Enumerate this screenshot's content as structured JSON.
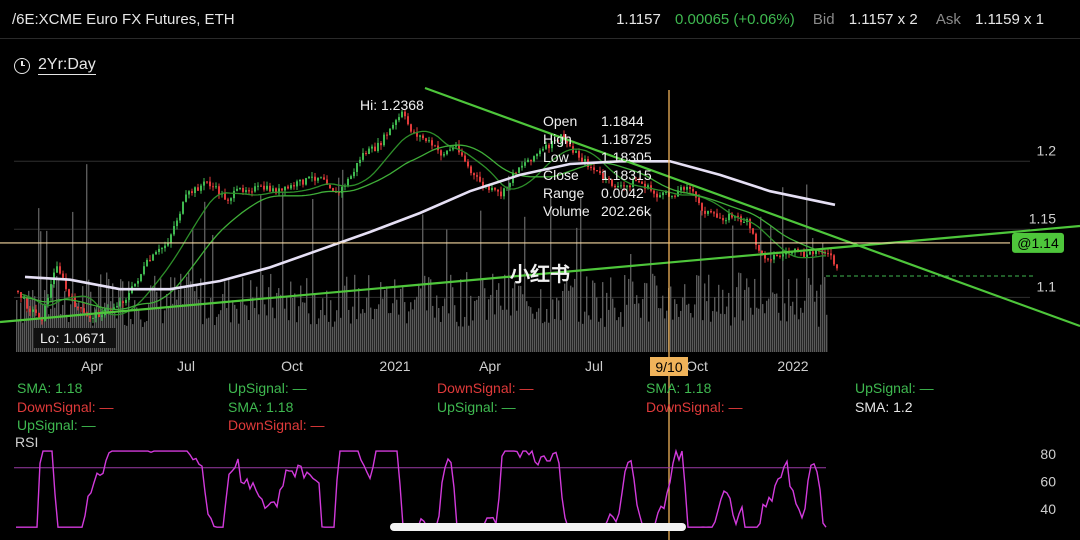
{
  "header": {
    "symbol": "/6E:XCME Euro FX Futures, ETH",
    "last": "1.1157",
    "change": "0.00065 (+0.06%)",
    "bid_label": "Bid",
    "bid": "1.1157 x 2",
    "ask_label": "Ask",
    "ask": "1.1159 x 1"
  },
  "range_selector": {
    "label": "2Yr:Day",
    "icon": "clock-icon"
  },
  "crosshair": {
    "date_label": "9/10"
  },
  "tooltip": {
    "rows": [
      {
        "label": "Open",
        "value": "1.1844"
      },
      {
        "label": "High",
        "value": "1.18725"
      },
      {
        "label": "Low",
        "value": "1.18305"
      },
      {
        "label": "Close",
        "value": "1.18315"
      },
      {
        "label": "Range",
        "value": "0.0042"
      },
      {
        "label": "Volume",
        "value": "202.26k"
      }
    ]
  },
  "watermark": "小红书",
  "colors": {
    "up": "#3fb950",
    "down": "#e03a3a",
    "sma200": "#e6e0f5",
    "trendline": "#4ec63b",
    "crosshair": "#f0b35a",
    "rsi": "#d23adb",
    "volume": "#5a5a5a"
  },
  "legends": [
    {
      "text": "SMA: 1.18",
      "color": "green"
    },
    {
      "text": "DownSignal: —",
      "color": "red"
    },
    {
      "text": "UpSignal: —",
      "color": "green"
    },
    {
      "text": "UpSignal: —",
      "color": "green"
    },
    {
      "text": "SMA: 1.18",
      "color": "green"
    },
    {
      "text": "DownSignal: —",
      "color": "red"
    },
    {
      "text": "DownSignal: —",
      "color": "red"
    },
    {
      "text": "UpSignal: —",
      "color": "green"
    },
    {
      "text": "SMA: 1.18",
      "color": "green"
    },
    {
      "text": "DownSignal: —",
      "color": "red"
    },
    {
      "text": "UpSignal: —",
      "color": "green"
    },
    {
      "text": "SMA: 1.2",
      "color": "white"
    }
  ],
  "chart_data": [
    {
      "type": "candlestick",
      "title": "/6E:XCME Euro FX Futures, ETH",
      "x_ticks": [
        "Apr",
        "Jul",
        "Oct",
        "2021",
        "Apr",
        "Jul",
        "Oct",
        "2022"
      ],
      "y_ticks": [
        1.2,
        1.15,
        1.1
      ],
      "ylim": [
        1.065,
        1.245
      ],
      "annotations": {
        "hi": "Hi: 1.2368",
        "lo": "Lo: 1.0671",
        "price_tag": "@1.14"
      },
      "price_line": 1.14,
      "dashed_line": 1.1157,
      "close_series": [
        {
          "x": 0,
          "y": 1.105
        },
        {
          "x": 12,
          "y": 1.092
        },
        {
          "x": 25,
          "y": 1.085
        },
        {
          "x": 40,
          "y": 1.125
        },
        {
          "x": 52,
          "y": 1.1
        },
        {
          "x": 70,
          "y": 1.085
        },
        {
          "x": 90,
          "y": 1.09
        },
        {
          "x": 110,
          "y": 1.1
        },
        {
          "x": 130,
          "y": 1.125
        },
        {
          "x": 150,
          "y": 1.14
        },
        {
          "x": 170,
          "y": 1.175
        },
        {
          "x": 190,
          "y": 1.185
        },
        {
          "x": 210,
          "y": 1.172
        },
        {
          "x": 225,
          "y": 1.18
        },
        {
          "x": 245,
          "y": 1.18
        },
        {
          "x": 265,
          "y": 1.178
        },
        {
          "x": 285,
          "y": 1.185
        },
        {
          "x": 305,
          "y": 1.19
        },
        {
          "x": 320,
          "y": 1.175
        },
        {
          "x": 335,
          "y": 1.19
        },
        {
          "x": 345,
          "y": 1.205
        },
        {
          "x": 360,
          "y": 1.21
        },
        {
          "x": 375,
          "y": 1.225
        },
        {
          "x": 385,
          "y": 1.235
        },
        {
          "x": 395,
          "y": 1.222
        },
        {
          "x": 410,
          "y": 1.215
        },
        {
          "x": 425,
          "y": 1.205
        },
        {
          "x": 440,
          "y": 1.212
        },
        {
          "x": 455,
          "y": 1.19
        },
        {
          "x": 470,
          "y": 1.18
        },
        {
          "x": 485,
          "y": 1.175
        },
        {
          "x": 500,
          "y": 1.195
        },
        {
          "x": 515,
          "y": 1.203
        },
        {
          "x": 530,
          "y": 1.21
        },
        {
          "x": 545,
          "y": 1.218
        },
        {
          "x": 560,
          "y": 1.205
        },
        {
          "x": 575,
          "y": 1.195
        },
        {
          "x": 590,
          "y": 1.185
        },
        {
          "x": 605,
          "y": 1.18
        },
        {
          "x": 620,
          "y": 1.186
        },
        {
          "x": 640,
          "y": 1.175
        },
        {
          "x": 655,
          "y": 1.175
        },
        {
          "x": 670,
          "y": 1.183
        },
        {
          "x": 685,
          "y": 1.165
        },
        {
          "x": 700,
          "y": 1.158
        },
        {
          "x": 715,
          "y": 1.16
        },
        {
          "x": 730,
          "y": 1.155
        },
        {
          "x": 745,
          "y": 1.13
        },
        {
          "x": 760,
          "y": 1.13
        },
        {
          "x": 775,
          "y": 1.134
        },
        {
          "x": 790,
          "y": 1.13
        },
        {
          "x": 805,
          "y": 1.136
        },
        {
          "x": 815,
          "y": 1.128
        },
        {
          "x": 822,
          "y": 1.116
        }
      ],
      "sma_series": [
        {
          "x": 15,
          "y": 1.115
        },
        {
          "x": 60,
          "y": 1.113
        },
        {
          "x": 110,
          "y": 1.106
        },
        {
          "x": 160,
          "y": 1.106
        },
        {
          "x": 210,
          "y": 1.112
        },
        {
          "x": 260,
          "y": 1.122
        },
        {
          "x": 310,
          "y": 1.135
        },
        {
          "x": 360,
          "y": 1.148
        },
        {
          "x": 410,
          "y": 1.162
        },
        {
          "x": 460,
          "y": 1.178
        },
        {
          "x": 510,
          "y": 1.19
        },
        {
          "x": 560,
          "y": 1.198
        },
        {
          "x": 610,
          "y": 1.2
        },
        {
          "x": 660,
          "y": 1.2
        },
        {
          "x": 710,
          "y": 1.19
        },
        {
          "x": 760,
          "y": 1.178
        },
        {
          "x": 825,
          "y": 1.168
        }
      ]
    },
    {
      "type": "line",
      "title": "RSI",
      "y_ticks": [
        80,
        60,
        40
      ],
      "overbought": 70,
      "ylim": [
        25,
        90
      ]
    }
  ]
}
